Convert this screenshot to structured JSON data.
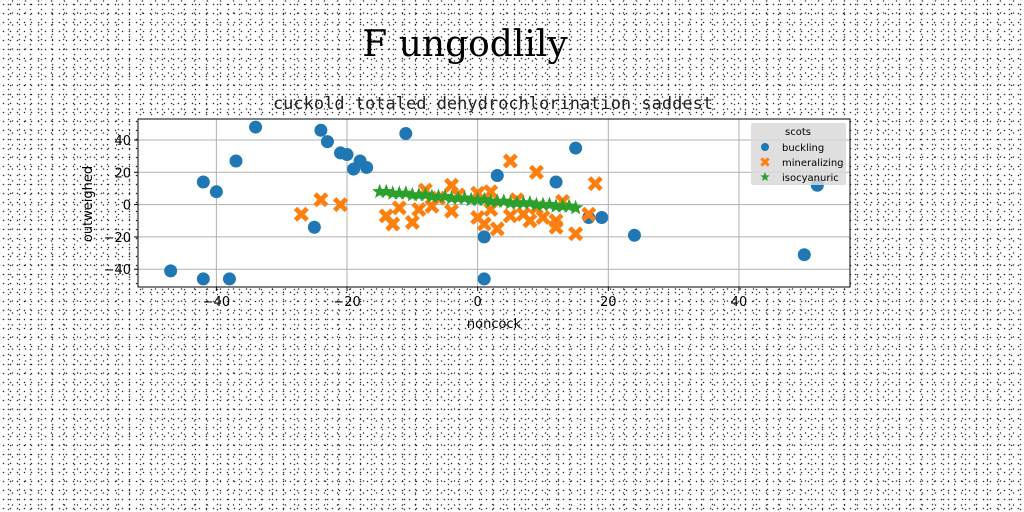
{
  "suptitle": "F ungodlily",
  "chart_data": {
    "type": "scatter",
    "title": "cuckold totaled dehydrochlorination saddest",
    "xlabel": "noncock",
    "ylabel": "outweighed",
    "xlim": [
      -52,
      57
    ],
    "ylim": [
      -51,
      53
    ],
    "xticks": [
      -40,
      -20,
      0,
      20,
      40
    ],
    "yticks": [
      -40,
      -20,
      0,
      20,
      40
    ],
    "grid": true,
    "legend": {
      "title": "scots",
      "placement": "top-right"
    },
    "series": [
      {
        "name": "buckling",
        "marker": "circle",
        "color": "#1f77b4",
        "points": [
          [
            -47,
            -41
          ],
          [
            -42,
            -46
          ],
          [
            -42,
            14
          ],
          [
            -40,
            8
          ],
          [
            -38,
            -46
          ],
          [
            -37,
            27
          ],
          [
            -34,
            48
          ],
          [
            -25,
            -14
          ],
          [
            -24,
            46
          ],
          [
            -23,
            39
          ],
          [
            -21,
            32
          ],
          [
            -20,
            31
          ],
          [
            -19,
            22
          ],
          [
            -18,
            27
          ],
          [
            -17,
            23
          ],
          [
            -11,
            44
          ],
          [
            1,
            -20
          ],
          [
            1,
            -46
          ],
          [
            3,
            18
          ],
          [
            12,
            14
          ],
          [
            15,
            35
          ],
          [
            17,
            -8
          ],
          [
            19,
            -8
          ],
          [
            24,
            -19
          ],
          [
            50,
            -31
          ],
          [
            52,
            12
          ]
        ]
      },
      {
        "name": "mineralizing",
        "marker": "x",
        "color": "#ff7f0e",
        "points": [
          [
            -27,
            -6
          ],
          [
            -24,
            3
          ],
          [
            -21,
            0
          ],
          [
            -14,
            -7
          ],
          [
            -13,
            -12
          ],
          [
            -12,
            -2
          ],
          [
            -10,
            -11
          ],
          [
            -9,
            -3
          ],
          [
            -8,
            9
          ],
          [
            -7,
            -1
          ],
          [
            -6,
            4
          ],
          [
            -4,
            -4
          ],
          [
            -4,
            12
          ],
          [
            -3,
            6
          ],
          [
            0,
            -8
          ],
          [
            0,
            7
          ],
          [
            1,
            -12
          ],
          [
            2,
            -3
          ],
          [
            2,
            8
          ],
          [
            3,
            -15
          ],
          [
            5,
            -7
          ],
          [
            5,
            27
          ],
          [
            6,
            3
          ],
          [
            7,
            -6
          ],
          [
            8,
            -10
          ],
          [
            9,
            -2
          ],
          [
            9,
            20
          ],
          [
            10,
            -8
          ],
          [
            12,
            -14
          ],
          [
            12,
            -10
          ],
          [
            13,
            2
          ],
          [
            15,
            -18
          ],
          [
            17,
            -6
          ],
          [
            18,
            13
          ]
        ]
      },
      {
        "name": "isocyanuric",
        "marker": "star",
        "color": "#2ca02c",
        "points": [
          [
            -15,
            8
          ],
          [
            -14,
            8
          ],
          [
            -13,
            7
          ],
          [
            -12,
            7
          ],
          [
            -11,
            7
          ],
          [
            -10,
            6
          ],
          [
            -9,
            6
          ],
          [
            -8,
            6
          ],
          [
            -7,
            5
          ],
          [
            -6,
            5
          ],
          [
            -5,
            5
          ],
          [
            -4,
            4
          ],
          [
            -3,
            4
          ],
          [
            -2,
            4
          ],
          [
            -1,
            3
          ],
          [
            0,
            3
          ],
          [
            1,
            3
          ],
          [
            2,
            2
          ],
          [
            3,
            2
          ],
          [
            4,
            2
          ],
          [
            5,
            1
          ],
          [
            6,
            1
          ],
          [
            7,
            1
          ],
          [
            8,
            1
          ],
          [
            9,
            0
          ],
          [
            10,
            0
          ],
          [
            11,
            0
          ],
          [
            12,
            -1
          ],
          [
            13,
            -1
          ],
          [
            14,
            -1
          ],
          [
            15,
            -2
          ]
        ]
      }
    ]
  }
}
